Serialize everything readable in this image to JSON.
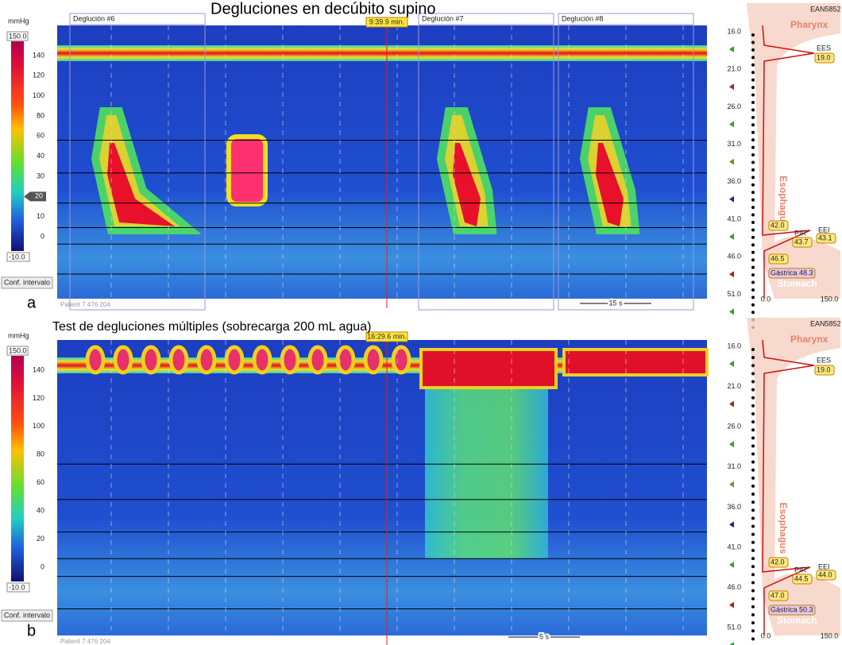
{
  "panels": [
    {
      "letter": "a",
      "title": "Degluciones en decúbito supino",
      "time_marker": "9:39.9 min.",
      "swallows": [
        "Deglución #6",
        "Deglución #7",
        "Deglución #8"
      ],
      "scale": {
        "unit": "mmHg",
        "max": "150.0",
        "min": "-10.0",
        "ticks": [
          "140",
          "120",
          "100",
          "80",
          "60",
          "40",
          "30",
          "20",
          "10",
          "0"
        ],
        "threshold": "20"
      },
      "button": "Conf. intervalo",
      "patient": "Patient 7 476 204",
      "time_scale": "15 s",
      "device": "EAN5852",
      "depths": [
        "16.0",
        "21.0",
        "26.0",
        "31.0",
        "36.0",
        "41.0",
        "46.0",
        "51.0"
      ],
      "axis": [
        "0.0",
        "150.0"
      ],
      "regions": [
        "Pharynx",
        "Esophagus",
        "Stomach"
      ],
      "markers": {
        "ees": "EES",
        "ees_value": "19.0",
        "pir": "PIR",
        "pir_value": "43.7",
        "eei": "EEI",
        "eei_value": "43.1",
        "upper": "42.0",
        "lower": "46.5",
        "gastric": "Gástrica 48.3"
      }
    },
    {
      "letter": "b",
      "title": "Test de degluciones múltiples (sobrecarga 200 mL agua)",
      "time_marker": "16:29.6 min.",
      "swallows": [],
      "scale": {
        "unit": "mmHg",
        "max": "150.0",
        "min": "-10.0",
        "ticks": [
          "140",
          "120",
          "100",
          "80",
          "60",
          "40",
          "20",
          "0"
        ]
      },
      "button": "Conf. intervalo",
      "patient": "Patient 7 476 204",
      "time_scale": "5 s",
      "device": "EAN5852",
      "depths": [
        "16.0",
        "21.0",
        "26.0",
        "31.0",
        "36.0",
        "41.0",
        "46.0",
        "51.0"
      ],
      "axis": [
        "0.0",
        "150.0"
      ],
      "regions": [
        "Pharynx",
        "Esophagus",
        "Stomach"
      ],
      "markers": {
        "ees": "EES",
        "ees_value": "19.0",
        "pir": "PIR",
        "pir_value": "44.5",
        "eei": "EEI",
        "eei_value": "44.0",
        "upper": "42.0",
        "lower": "47.0",
        "gastric": "Gástrica 50.3"
      }
    }
  ]
}
